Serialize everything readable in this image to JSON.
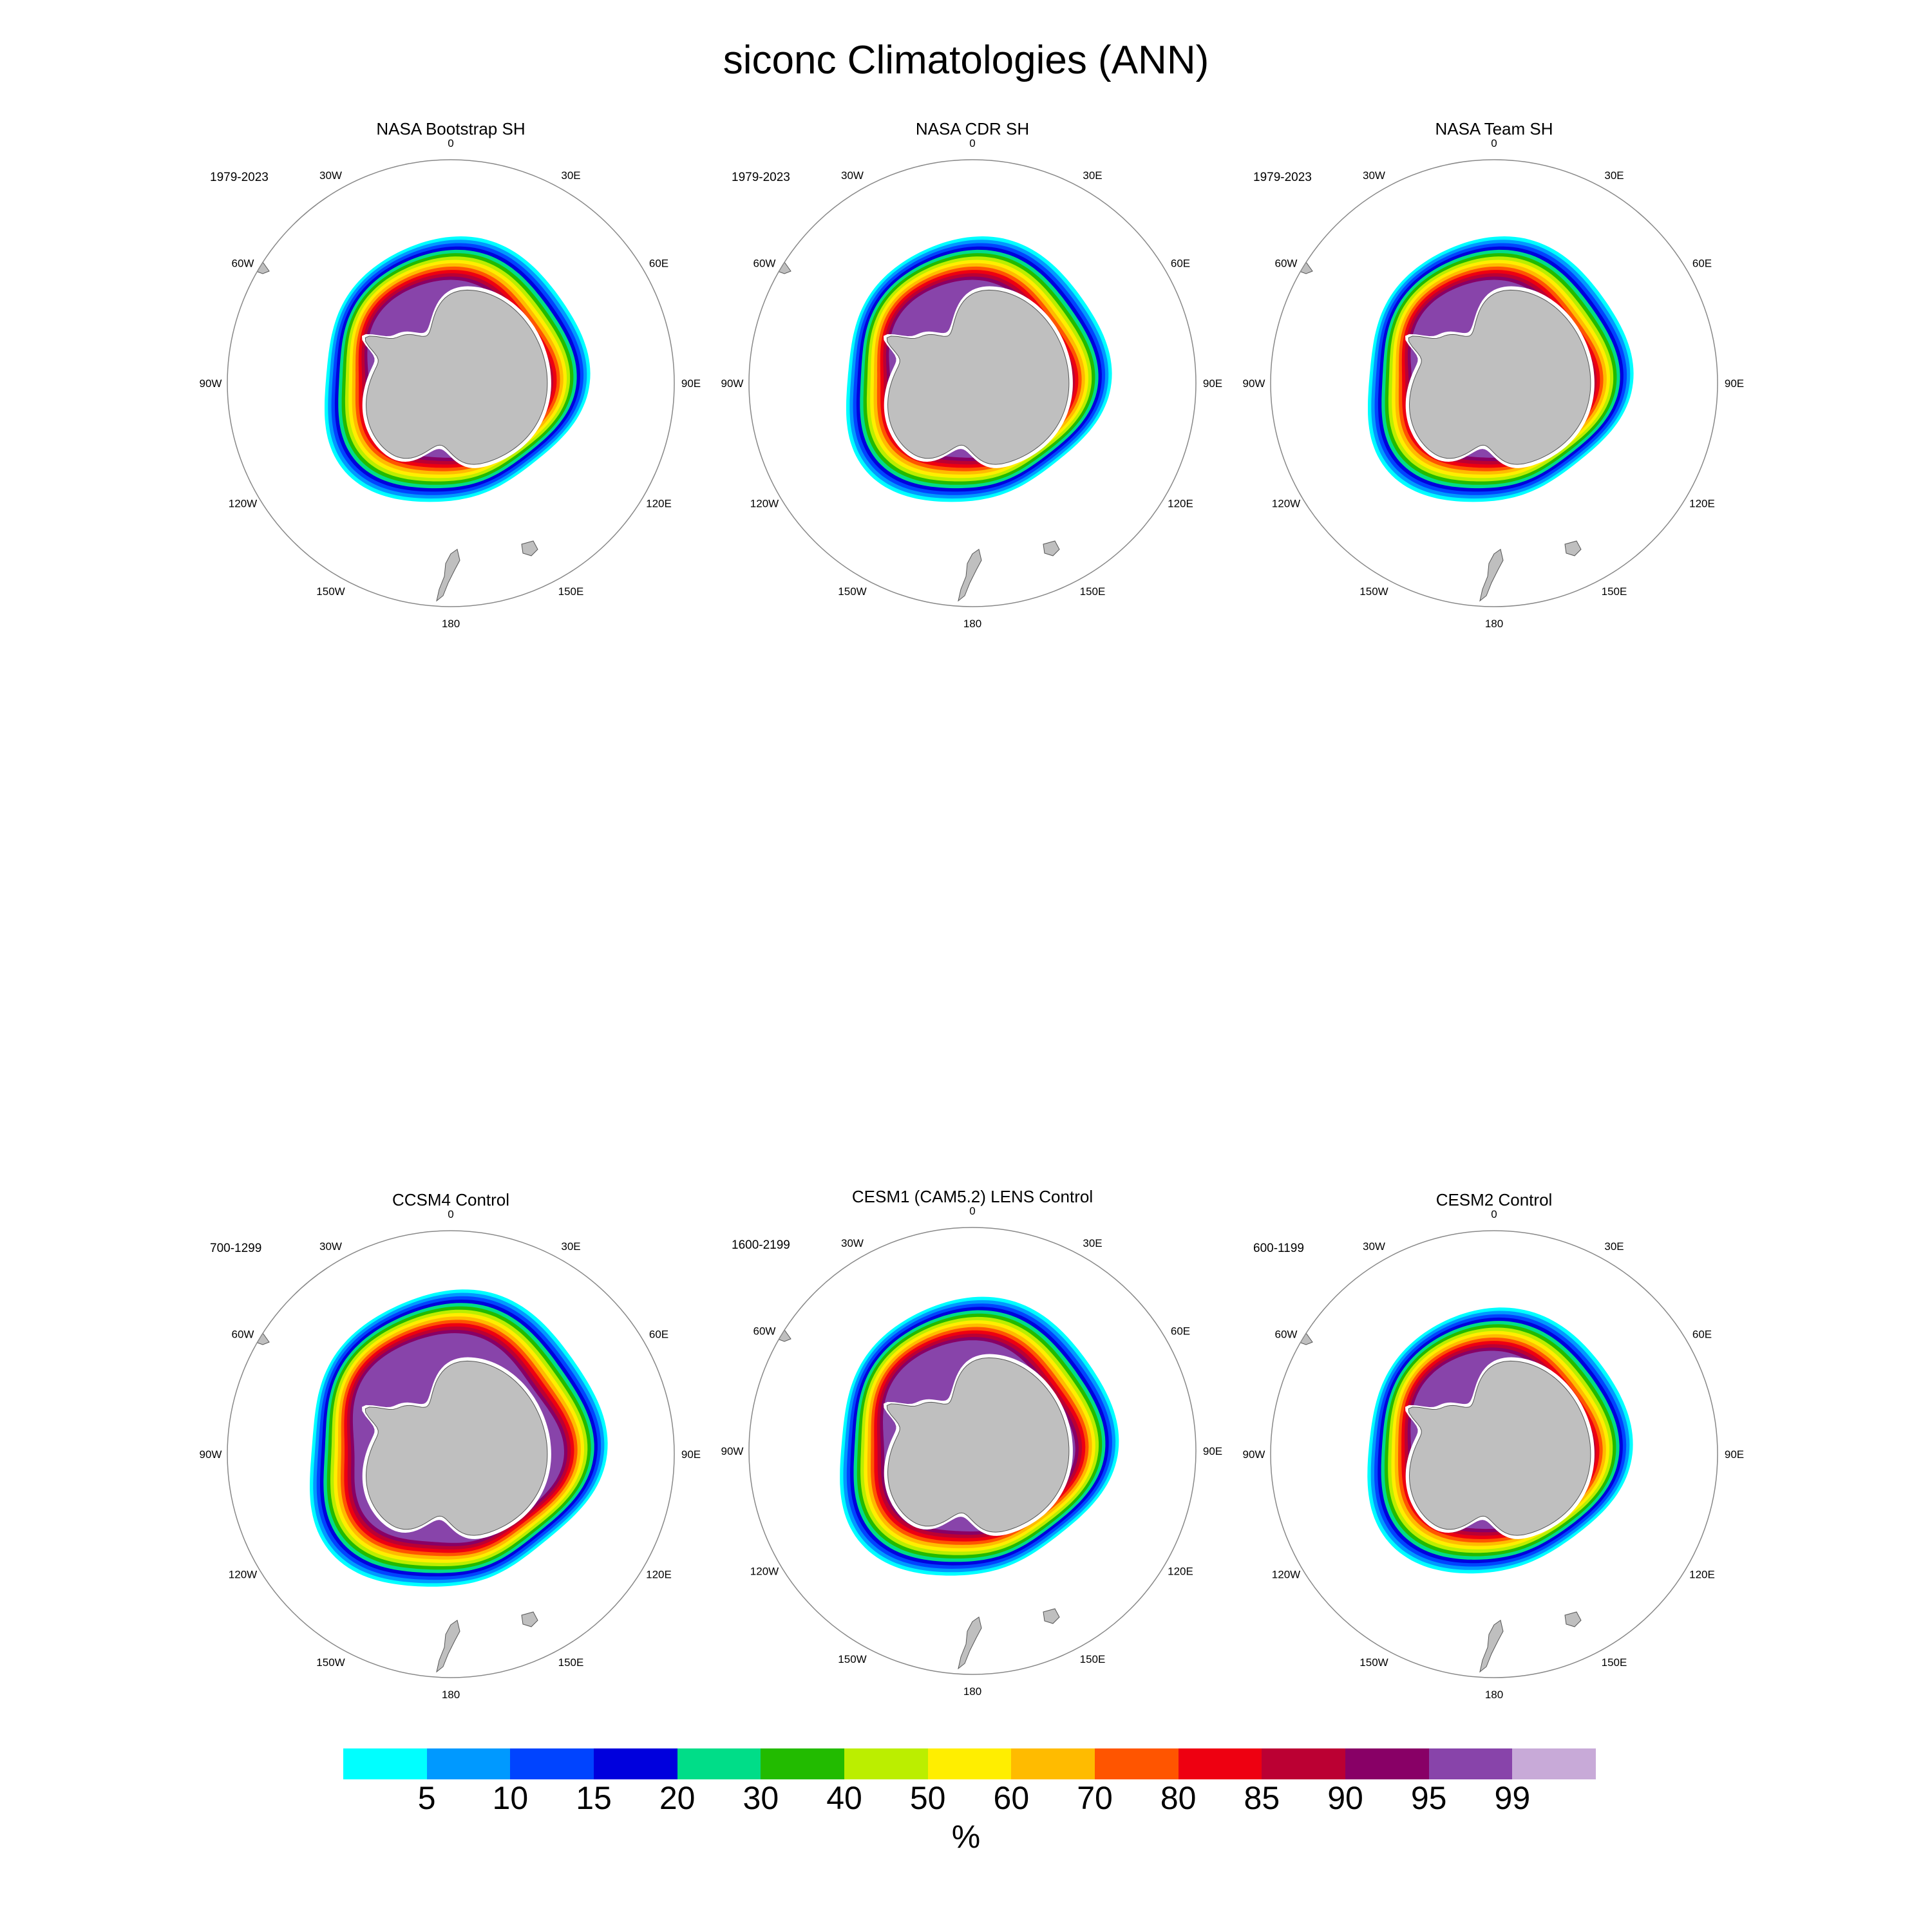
{
  "title": "siconc Climatologies (ANN)",
  "panels": [
    {
      "title": "NASA Bootstrap SH",
      "period": "1979-2023"
    },
    {
      "title": "NASA CDR SH",
      "period": "1979-2023"
    },
    {
      "title": "NASA Team SH",
      "period": "1979-2023"
    },
    {
      "title": "CCSM4 Control",
      "period": "700-1299"
    },
    {
      "title": "CESM1 (CAM5.2) LENS Control",
      "period": "1600-2199"
    },
    {
      "title": "CESM2 Control",
      "period": "600-1199"
    }
  ],
  "longitude_labels": [
    "0",
    "30E",
    "60E",
    "90E",
    "120E",
    "150E",
    "180",
    "150W",
    "120W",
    "90W",
    "60W",
    "30W"
  ],
  "colorbar": {
    "ticks": [
      "5",
      "10",
      "15",
      "20",
      "30",
      "40",
      "50",
      "60",
      "70",
      "80",
      "85",
      "90",
      "95",
      "99"
    ],
    "units": "%",
    "colors": [
      "#00ffff",
      "#0099ff",
      "#0044ff",
      "#0000dd",
      "#00dd88",
      "#22bb00",
      "#bbee00",
      "#ffee00",
      "#ffbb00",
      "#ff5500",
      "#ee0011",
      "#bb0033",
      "#880066",
      "#8844aa",
      "#c8aad8"
    ]
  },
  "land_color": "#bfbfbf"
}
